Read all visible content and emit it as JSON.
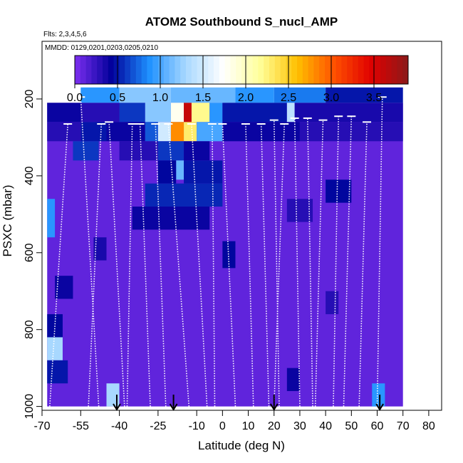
{
  "chart_data": {
    "type": "heatmap",
    "title": "ATOM2 Southbound S_nucl_AMP",
    "annotation_flights": "Flts: 2,3,4,5,6",
    "annotation_dates": "MMDD: 0129,0201,0203,0205,0210",
    "xlabel": "Latitude (deg N)",
    "ylabel": "PSXC (mbar)",
    "xlim": [
      -70,
      85
    ],
    "ylim": [
      1010,
      50
    ],
    "x_ticks": [
      -70,
      -55,
      -40,
      -25,
      -10,
      0,
      10,
      20,
      30,
      40,
      50,
      60,
      70,
      80
    ],
    "x_tick_labels": [
      "-70",
      "-55",
      "-40",
      "-25",
      "-10",
      "0",
      "10",
      "20",
      "30",
      "40",
      "50",
      "60",
      "70",
      "80"
    ],
    "y_ticks": [
      200,
      400,
      600,
      800,
      1000
    ],
    "y_tick_labels": [
      "200",
      "400",
      "600",
      "800",
      "1000"
    ],
    "colorbar": {
      "range": [
        0.0,
        3.9
      ],
      "ticks": [
        0.0,
        0.5,
        1.0,
        1.5,
        2.0,
        2.5,
        3.0,
        3.5
      ],
      "tick_labels": [
        "0.0",
        "0.5",
        "1.0",
        "1.5",
        "2.0",
        "2.5",
        "3.0",
        "3.5"
      ],
      "colors": [
        "#7d2ff0",
        "#00009a",
        "#1e90ff",
        "#a8d8ff",
        "#ffffff",
        "#ffff9a",
        "#ffc000",
        "#ff5000",
        "#e00000",
        "#8b1a1a"
      ]
    },
    "background_value": 0.1,
    "cells": [
      {
        "x0": -55,
        "x1": -40,
        "p0": 170,
        "p1": 210,
        "value": 0.9
      },
      {
        "x0": -40,
        "x1": -20,
        "p0": 170,
        "p1": 210,
        "value": 1.2
      },
      {
        "x0": -20,
        "x1": 5,
        "p0": 170,
        "p1": 210,
        "value": 1.1
      },
      {
        "x0": 5,
        "x1": 20,
        "p0": 170,
        "p1": 210,
        "value": 0.9
      },
      {
        "x0": 20,
        "x1": 40,
        "p0": 170,
        "p1": 210,
        "value": 0.8
      },
      {
        "x0": 40,
        "x1": 70,
        "p0": 170,
        "p1": 210,
        "value": 0.5
      },
      {
        "x0": -68,
        "x1": -55,
        "p0": 210,
        "p1": 260,
        "value": 0.4
      },
      {
        "x0": -55,
        "x1": -40,
        "p0": 210,
        "p1": 260,
        "value": 0.3
      },
      {
        "x0": -40,
        "x1": -30,
        "p0": 210,
        "p1": 260,
        "value": 0.6
      },
      {
        "x0": -30,
        "x1": -20,
        "p0": 210,
        "p1": 260,
        "value": 1.2
      },
      {
        "x0": -20,
        "x1": -15,
        "p0": 210,
        "p1": 260,
        "value": 1.8
      },
      {
        "x0": -15,
        "x1": -12,
        "p0": 210,
        "p1": 260,
        "value": 3.6
      },
      {
        "x0": -12,
        "x1": -5,
        "p0": 210,
        "p1": 260,
        "value": 2.2
      },
      {
        "x0": -5,
        "x1": 0,
        "p0": 210,
        "p1": 260,
        "value": 0.9
      },
      {
        "x0": 0,
        "x1": 25,
        "p0": 210,
        "p1": 260,
        "value": 0.5
      },
      {
        "x0": 25,
        "x1": 28,
        "p0": 210,
        "p1": 260,
        "value": 1.4
      },
      {
        "x0": 28,
        "x1": 70,
        "p0": 210,
        "p1": 260,
        "value": 0.35
      },
      {
        "x0": -68,
        "x1": -55,
        "p0": 260,
        "p1": 310,
        "value": 0.3
      },
      {
        "x0": -55,
        "x1": -45,
        "p0": 260,
        "p1": 310,
        "value": 0.5
      },
      {
        "x0": -45,
        "x1": -30,
        "p0": 260,
        "p1": 310,
        "value": 0.4
      },
      {
        "x0": -30,
        "x1": -25,
        "p0": 260,
        "p1": 310,
        "value": 0.7
      },
      {
        "x0": -25,
        "x1": -20,
        "p0": 260,
        "p1": 310,
        "value": 1.5
      },
      {
        "x0": -20,
        "x1": -15,
        "p0": 260,
        "p1": 310,
        "value": 2.8
      },
      {
        "x0": -15,
        "x1": -10,
        "p0": 260,
        "p1": 310,
        "value": 2.3
      },
      {
        "x0": -10,
        "x1": 0,
        "p0": 260,
        "p1": 310,
        "value": 1.0
      },
      {
        "x0": 0,
        "x1": 30,
        "p0": 260,
        "p1": 310,
        "value": 0.4
      },
      {
        "x0": 30,
        "x1": 70,
        "p0": 260,
        "p1": 310,
        "value": 0.3
      },
      {
        "x0": -58,
        "x1": -48,
        "p0": 310,
        "p1": 360,
        "value": 0.6
      },
      {
        "x0": -40,
        "x1": -25,
        "p0": 310,
        "p1": 360,
        "value": 0.3
      },
      {
        "x0": -25,
        "x1": -15,
        "p0": 310,
        "p1": 360,
        "value": 0.6
      },
      {
        "x0": -15,
        "x1": -5,
        "p0": 310,
        "p1": 360,
        "value": 0.4
      },
      {
        "x0": -18,
        "x1": -15,
        "p0": 360,
        "p1": 410,
        "value": 1.1
      },
      {
        "x0": -25,
        "x1": -18,
        "p0": 360,
        "p1": 420,
        "value": 0.45
      },
      {
        "x0": -15,
        "x1": 0,
        "p0": 360,
        "p1": 420,
        "value": 0.5
      },
      {
        "x0": -30,
        "x1": 0,
        "p0": 420,
        "p1": 480,
        "value": 0.55
      },
      {
        "x0": -35,
        "x1": -5,
        "p0": 480,
        "p1": 540,
        "value": 0.4
      },
      {
        "x0": 40,
        "x1": 50,
        "p0": 410,
        "p1": 470,
        "value": 0.45
      },
      {
        "x0": 25,
        "x1": 35,
        "p0": 460,
        "p1": 520,
        "value": 0.3
      },
      {
        "x0": -68,
        "x1": -65,
        "p0": 460,
        "p1": 560,
        "value": 0.9
      },
      {
        "x0": -50,
        "x1": -45,
        "p0": 560,
        "p1": 620,
        "value": 0.35
      },
      {
        "x0": 0,
        "x1": 5,
        "p0": 570,
        "p1": 640,
        "value": 0.45
      },
      {
        "x0": -65,
        "x1": -58,
        "p0": 660,
        "p1": 720,
        "value": 0.4
      },
      {
        "x0": 40,
        "x1": 45,
        "p0": 700,
        "p1": 760,
        "value": 0.3
      },
      {
        "x0": -68,
        "x1": -62,
        "p0": 760,
        "p1": 820,
        "value": 0.45
      },
      {
        "x0": -68,
        "x1": -62,
        "p0": 820,
        "p1": 880,
        "value": 1.3
      },
      {
        "x0": -68,
        "x1": -60,
        "p0": 880,
        "p1": 940,
        "value": 0.5
      },
      {
        "x0": 25,
        "x1": 30,
        "p0": 900,
        "p1": 960,
        "value": 0.4
      },
      {
        "x0": -45,
        "x1": -40,
        "p0": 940,
        "p1": 1000,
        "value": 1.3
      },
      {
        "x0": 58,
        "x1": 63,
        "p0": 940,
        "p1": 1000,
        "value": 0.9
      }
    ],
    "profiles": [
      {
        "lat_top": -60,
        "lat_bottom": -67,
        "p_top": 265
      },
      {
        "lat_top": -55,
        "lat_bottom": -48,
        "p_top": 195
      },
      {
        "lat_top": -47,
        "lat_bottom": -52,
        "p_top": 265
      },
      {
        "lat_top": -44,
        "lat_bottom": -38,
        "p_top": 260
      },
      {
        "lat_top": -35,
        "lat_bottom": -37,
        "p_top": 265
      },
      {
        "lat_top": -32,
        "lat_bottom": -28,
        "p_top": 265
      },
      {
        "lat_top": -26,
        "lat_bottom": -22,
        "p_top": 265
      },
      {
        "lat_top": -21,
        "lat_bottom": -13,
        "p_top": 265
      },
      {
        "lat_top": -12,
        "lat_bottom": -6,
        "p_top": 265
      },
      {
        "lat_top": -4,
        "lat_bottom": -3,
        "p_top": 265
      },
      {
        "lat_top": 0,
        "lat_bottom": 5,
        "p_top": 265
      },
      {
        "lat_top": 9,
        "lat_bottom": 12,
        "p_top": 265
      },
      {
        "lat_top": 15,
        "lat_bottom": 18,
        "p_top": 265
      },
      {
        "lat_top": 20,
        "lat_bottom": 22,
        "p_top": 255
      },
      {
        "lat_top": 24,
        "lat_bottom": 20,
        "p_top": 265
      },
      {
        "lat_top": 28,
        "lat_bottom": 30,
        "p_top": 250
      },
      {
        "lat_top": 33,
        "lat_bottom": 35,
        "p_top": 250
      },
      {
        "lat_top": 39,
        "lat_bottom": 36,
        "p_top": 255
      },
      {
        "lat_top": 45,
        "lat_bottom": 43,
        "p_top": 245
      },
      {
        "lat_top": 50,
        "lat_bottom": 47,
        "p_top": 245
      },
      {
        "lat_top": 56,
        "lat_bottom": 53,
        "p_top": 260
      },
      {
        "lat_top": 62,
        "lat_bottom": 60,
        "p_top": 195
      }
    ],
    "arrow_lats": [
      -41,
      -19,
      20,
      61
    ]
  }
}
